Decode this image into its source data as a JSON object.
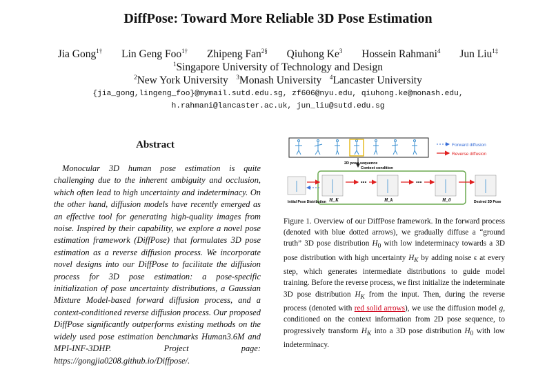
{
  "title": "DiffPose: Toward More Reliable 3D Pose Estimation",
  "authors": [
    {
      "name": "Jia Gong",
      "sup": "1†"
    },
    {
      "name": "Lin Geng Foo",
      "sup": "1†"
    },
    {
      "name": "Zhipeng Fan",
      "sup": "2§"
    },
    {
      "name": "Qiuhong Ke",
      "sup": "3"
    },
    {
      "name": "Hossein Rahmani",
      "sup": "4"
    },
    {
      "name": "Jun Liu",
      "sup": "1‡"
    }
  ],
  "affiliations": {
    "line1": {
      "sup": "1",
      "text": "Singapore University of Technology and Design"
    },
    "line2": [
      {
        "sup": "2",
        "text": "New York University"
      },
      {
        "sup": "3",
        "text": "Monash University"
      },
      {
        "sup": "4",
        "text": "Lancaster University"
      }
    ]
  },
  "emails": {
    "line1": "{jia_gong,lingeng_foo}@mymail.sutd.edu.sg, zf606@nyu.edu, qiuhong.ke@monash.edu,",
    "line2": "h.rahmani@lancaster.ac.uk, jun_liu@sutd.edu.sg"
  },
  "abstract": {
    "heading": "Abstract",
    "text": "Monocular 3D human pose estimation is quite challenging due to the inherent ambiguity and occlusion, which often lead to high uncertainty and indeterminacy. On the other hand, diffusion models have recently emerged as an effective tool for generating high-quality images from noise. Inspired by their capability, we explore a novel pose estimation framework (DiffPose) that formulates 3D pose estimation as a reverse diffusion process. We incorporate novel designs into our DiffPose to facilitate the diffusion process for 3D pose estimation: a pose-specific initialization of pose uncertainty distributions, a Gaussian Mixture Model-based forward diffusion process, and a context-conditioned reverse diffusion process. Our proposed DiffPose significantly outperforms existing methods on the widely used pose estimation benchmarks Human3.6M and MPI-INF-3DHP. Project page: https://gongjia0208.github.io/Diffpose/."
  },
  "figure": {
    "legend_forward": "Forward diffusion",
    "legend_reverse": "Reverse diffusion",
    "seq_label": "2D pose sequence",
    "context_label": "Context condition",
    "label_initial": "Initial Pose Distribution",
    "label_desired": "Desired 3D Pose",
    "h_labels": [
      "H_K",
      "H_k",
      "H_0"
    ],
    "colors": {
      "forward": "#3a6fd8",
      "reverse": "#e02020",
      "frame": "#6aa84f",
      "highlight": "#e2b100"
    }
  },
  "caption": {
    "p1": "Figure 1.  Overview of our DiffPose framework.  In the forward process (denoted with blue dotted arrows), we gradually diffuse a “ground truth” 3D pose distribution ",
    "h0a": "H",
    "s0a": "0",
    "p2": " with low indeterminacy towards a 3D pose distribution with high uncertainty ",
    "hka": "H",
    "ska": "K",
    "p3": " by adding noise ϵ at every step, which generates intermediate distributions to guide model training. Before the reverse process, we first initialize the indeterminate 3D pose distribution ",
    "hkb": "H",
    "skb": "K",
    "p4": " from the input.  Then, during the reverse process (denoted with ",
    "red_text": "red solid arrows",
    "p5": "), we use the diffusion model ",
    "g": "g",
    "p6": ", conditioned on the context information from 2D pose sequence, to progressively transform ",
    "hkc": "H",
    "skc": "K",
    "p7": " into a 3D pose distribution ",
    "h0b": "H",
    "s0b": "0",
    "p8": " with low indeterminacy."
  }
}
